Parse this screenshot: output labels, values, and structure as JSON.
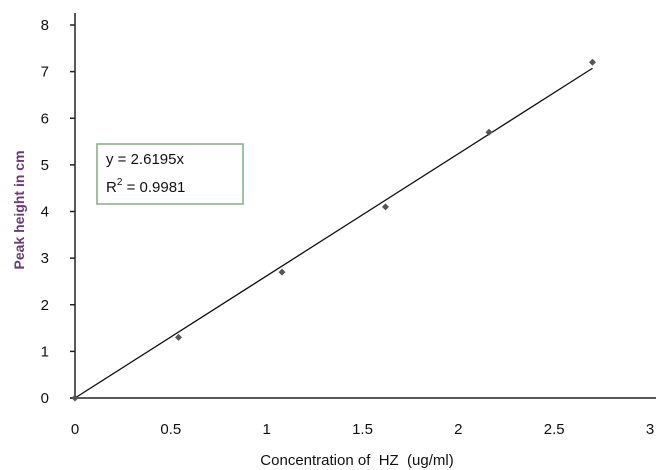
{
  "chart_data": {
    "type": "scatter",
    "xlabel": "Concentration of  HZ  (ug/ml)",
    "ylabel": "Peak height in cm",
    "xlim": [
      0,
      3
    ],
    "ylim": [
      0,
      8
    ],
    "x_ticks": [
      "0",
      "0.5",
      "1",
      "1.5",
      "2",
      "2.5",
      "3"
    ],
    "y_ticks": [
      "0",
      "1",
      "2",
      "3",
      "4",
      "5",
      "6",
      "7",
      "8"
    ],
    "points": [
      {
        "x": 0.0,
        "y": 0.0
      },
      {
        "x": 0.54,
        "y": 1.3
      },
      {
        "x": 1.08,
        "y": 2.7
      },
      {
        "x": 1.62,
        "y": 4.1
      },
      {
        "x": 2.16,
        "y": 5.7
      },
      {
        "x": 2.7,
        "y": 7.2
      }
    ],
    "trendline": {
      "slope": 2.6195,
      "intercept": 0,
      "x_range": [
        0,
        2.7
      ]
    },
    "annotation": {
      "equation": "y = 2.6195x",
      "r2_prefix": "R",
      "r2_sup": "2",
      "r2_value": " = 0.9981"
    },
    "colors": {
      "ylabel": "#6a3a7a",
      "legend_border": "#7fb07f",
      "axis": "#222222",
      "marker": "#555555"
    }
  }
}
